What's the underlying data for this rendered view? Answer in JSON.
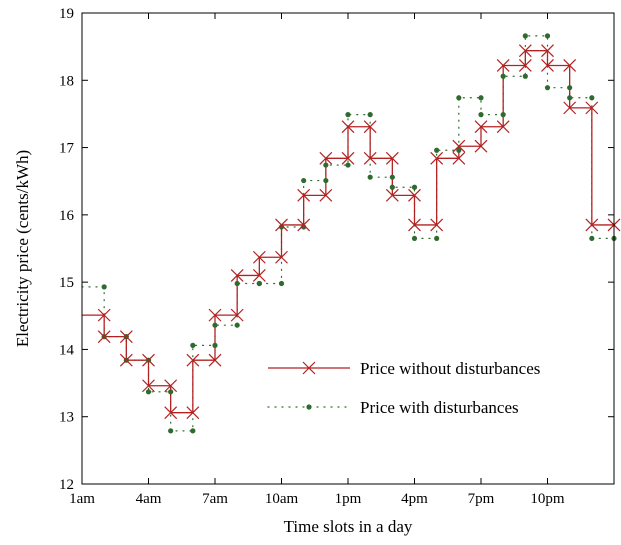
{
  "chart_data": {
    "type": "line",
    "title": "",
    "xlabel": "Time slots in a day",
    "ylabel": "Electricity price (cents/kWh)",
    "xlim": [
      1,
      25
    ],
    "ylim": [
      12,
      19
    ],
    "x_ticks": [
      {
        "value": 1,
        "label": "1am"
      },
      {
        "value": 4,
        "label": "4am"
      },
      {
        "value": 7,
        "label": "7am"
      },
      {
        "value": 10,
        "label": "10am"
      },
      {
        "value": 13,
        "label": "1pm"
      },
      {
        "value": 16,
        "label": "4pm"
      },
      {
        "value": 19,
        "label": "7pm"
      },
      {
        "value": 22,
        "label": "10pm"
      }
    ],
    "y_ticks": [
      12,
      13,
      14,
      15,
      16,
      17,
      18,
      19
    ],
    "grid": false,
    "legend_position": "lower-right",
    "series": [
      {
        "name": "Price without disturbances",
        "style": "solid stairs with x markers",
        "color": "#b22222",
        "x": [
          1,
          2,
          3,
          4,
          5,
          6,
          7,
          8,
          9,
          10,
          11,
          12,
          13,
          14,
          15,
          16,
          17,
          18,
          19,
          20,
          21,
          22,
          23,
          24
        ],
        "values": [
          14.51,
          14.19,
          13.84,
          13.46,
          13.06,
          13.84,
          14.51,
          15.1,
          15.37,
          15.85,
          16.29,
          16.84,
          17.31,
          16.84,
          16.29,
          15.85,
          16.84,
          17.02,
          17.31,
          18.22,
          18.44,
          18.22,
          17.59,
          15.85
        ]
      },
      {
        "name": "Price with disturbances",
        "style": "dotted stairs with dot markers",
        "color": "#2e6b2e",
        "x": [
          1,
          2,
          3,
          4,
          5,
          6,
          7,
          8,
          9,
          10,
          11,
          12,
          13,
          14,
          15,
          16,
          17,
          18,
          19,
          20,
          21,
          22,
          23,
          24
        ],
        "values": [
          14.93,
          14.19,
          13.84,
          13.37,
          12.79,
          14.06,
          14.36,
          14.98,
          14.98,
          15.82,
          16.51,
          16.74,
          17.49,
          16.56,
          16.41,
          15.65,
          16.96,
          17.74,
          17.49,
          18.06,
          18.66,
          17.89,
          17.74,
          15.65
        ]
      }
    ]
  }
}
